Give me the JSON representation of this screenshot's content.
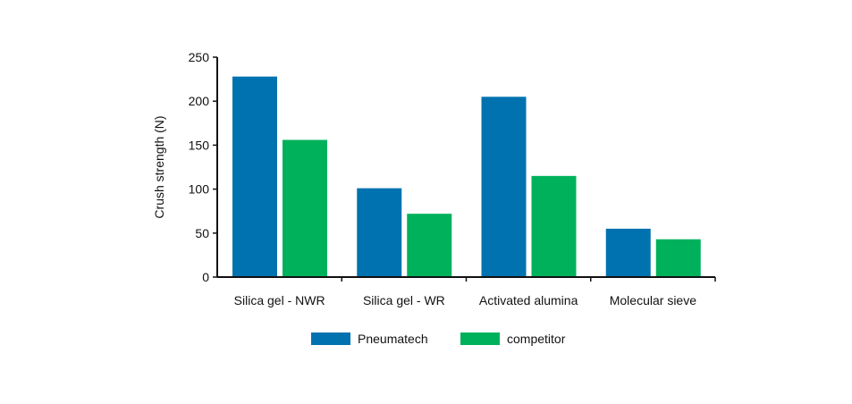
{
  "chart_data": {
    "type": "bar",
    "categories": [
      "Silica gel - NWR",
      "Silica gel - WR",
      "Activated alumina",
      "Molecular sieve"
    ],
    "series": [
      {
        "name": "Pneumatech",
        "values": [
          228,
          101,
          205,
          55
        ],
        "color": "#0072b0"
      },
      {
        "name": "competitor",
        "values": [
          156,
          72,
          115,
          43
        ],
        "color": "#00b15c"
      }
    ],
    "title": "",
    "xlabel": "",
    "ylabel": "Crush strength (N)",
    "ylim": [
      0,
      250
    ],
    "yticks": [
      0,
      50,
      100,
      150,
      200,
      250
    ],
    "grid": false,
    "legend": "bottom-center"
  }
}
